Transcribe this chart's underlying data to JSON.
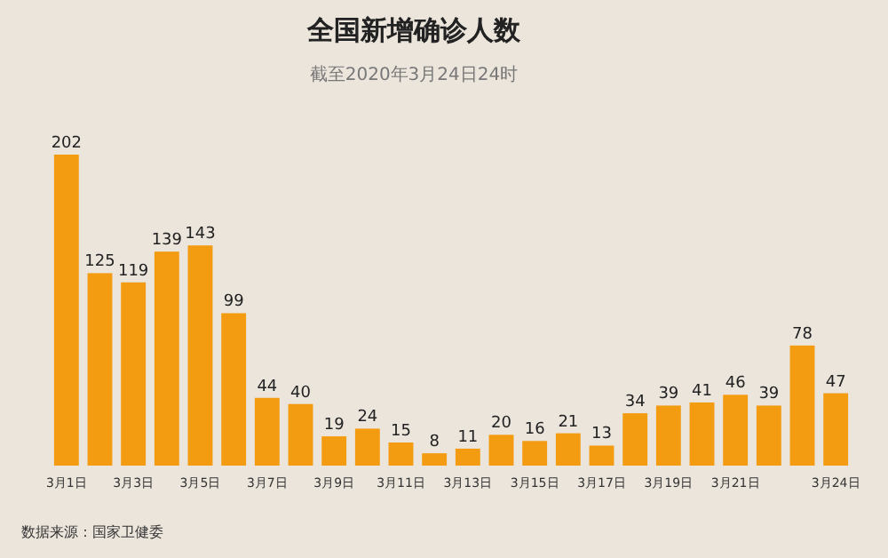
{
  "chart_data": {
    "type": "bar",
    "title": "全国新增确诊人数",
    "subtitle": "截至2020年3月24日24时",
    "categories": [
      "3月1日",
      null,
      "3月3日",
      null,
      "3月5日",
      null,
      "3月7日",
      null,
      "3月9日",
      null,
      "3月11日",
      null,
      "3月13日",
      null,
      "3月15日",
      null,
      "3月17日",
      null,
      "3月19日",
      null,
      "3月21日",
      null,
      null,
      "3月24日"
    ],
    "values": [
      202,
      125,
      119,
      139,
      143,
      99,
      44,
      40,
      19,
      24,
      15,
      8,
      11,
      20,
      16,
      21,
      13,
      34,
      39,
      41,
      46,
      39,
      78,
      47
    ],
    "color": "#f39c12",
    "data_labels": true,
    "annotations": [
      "数据来源：国家卫健委"
    ]
  }
}
